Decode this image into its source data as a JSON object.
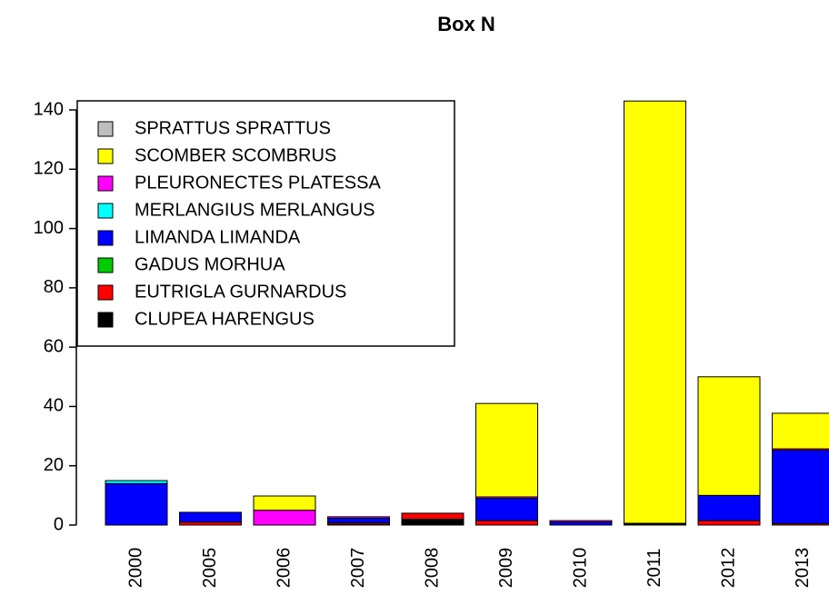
{
  "chart_data": {
    "type": "stacked-bar",
    "title": "Box N",
    "categories": [
      "2000",
      "2005",
      "2006",
      "2007",
      "2008",
      "2009",
      "2010",
      "2011",
      "2012",
      "2013"
    ],
    "series": [
      {
        "name": "CLUPEA HARENGUS",
        "color": "#000000",
        "values": [
          0,
          0,
          0,
          0.3,
          2,
          0,
          0,
          0.3,
          0,
          0
        ]
      },
      {
        "name": "EUTRIGLA GURNARDUS",
        "color": "#ff0000",
        "values": [
          0,
          1,
          0,
          0.5,
          2,
          1.5,
          0,
          0.3,
          1.5,
          0.5
        ]
      },
      {
        "name": "GADUS MORHUA",
        "color": "#00cd00",
        "values": [
          0,
          0,
          0,
          0,
          0,
          0,
          0,
          0,
          0,
          0
        ]
      },
      {
        "name": "LIMANDA LIMANDA",
        "color": "#0000ff",
        "values": [
          14,
          3.3,
          0,
          1.5,
          0,
          7.5,
          1,
          0,
          8.5,
          24.7
        ]
      },
      {
        "name": "MERLANGIUS MERLANGUS",
        "color": "#00ffff",
        "values": [
          1,
          0,
          0,
          0,
          0,
          0,
          0,
          0,
          0,
          0
        ]
      },
      {
        "name": "PLEURONECTES PLATESSA",
        "color": "#ff00ff",
        "values": [
          0,
          0,
          5,
          0.5,
          0,
          0.5,
          0.5,
          0,
          0,
          0.5
        ]
      },
      {
        "name": "SCOMBER SCOMBRUS",
        "color": "#ffff00",
        "values": [
          0,
          0,
          4.8,
          0,
          0,
          31.5,
          0,
          142.4,
          40,
          12
        ]
      },
      {
        "name": "SPRATTUS SPRATTUS",
        "color": "#bebebe",
        "values": [
          0,
          0,
          0,
          0,
          0,
          0,
          0,
          0,
          0,
          0
        ]
      }
    ],
    "ylim": [
      0,
      140
    ],
    "yticks": [
      0,
      20,
      40,
      60,
      80,
      100,
      120,
      140
    ],
    "legend": "top-left"
  }
}
